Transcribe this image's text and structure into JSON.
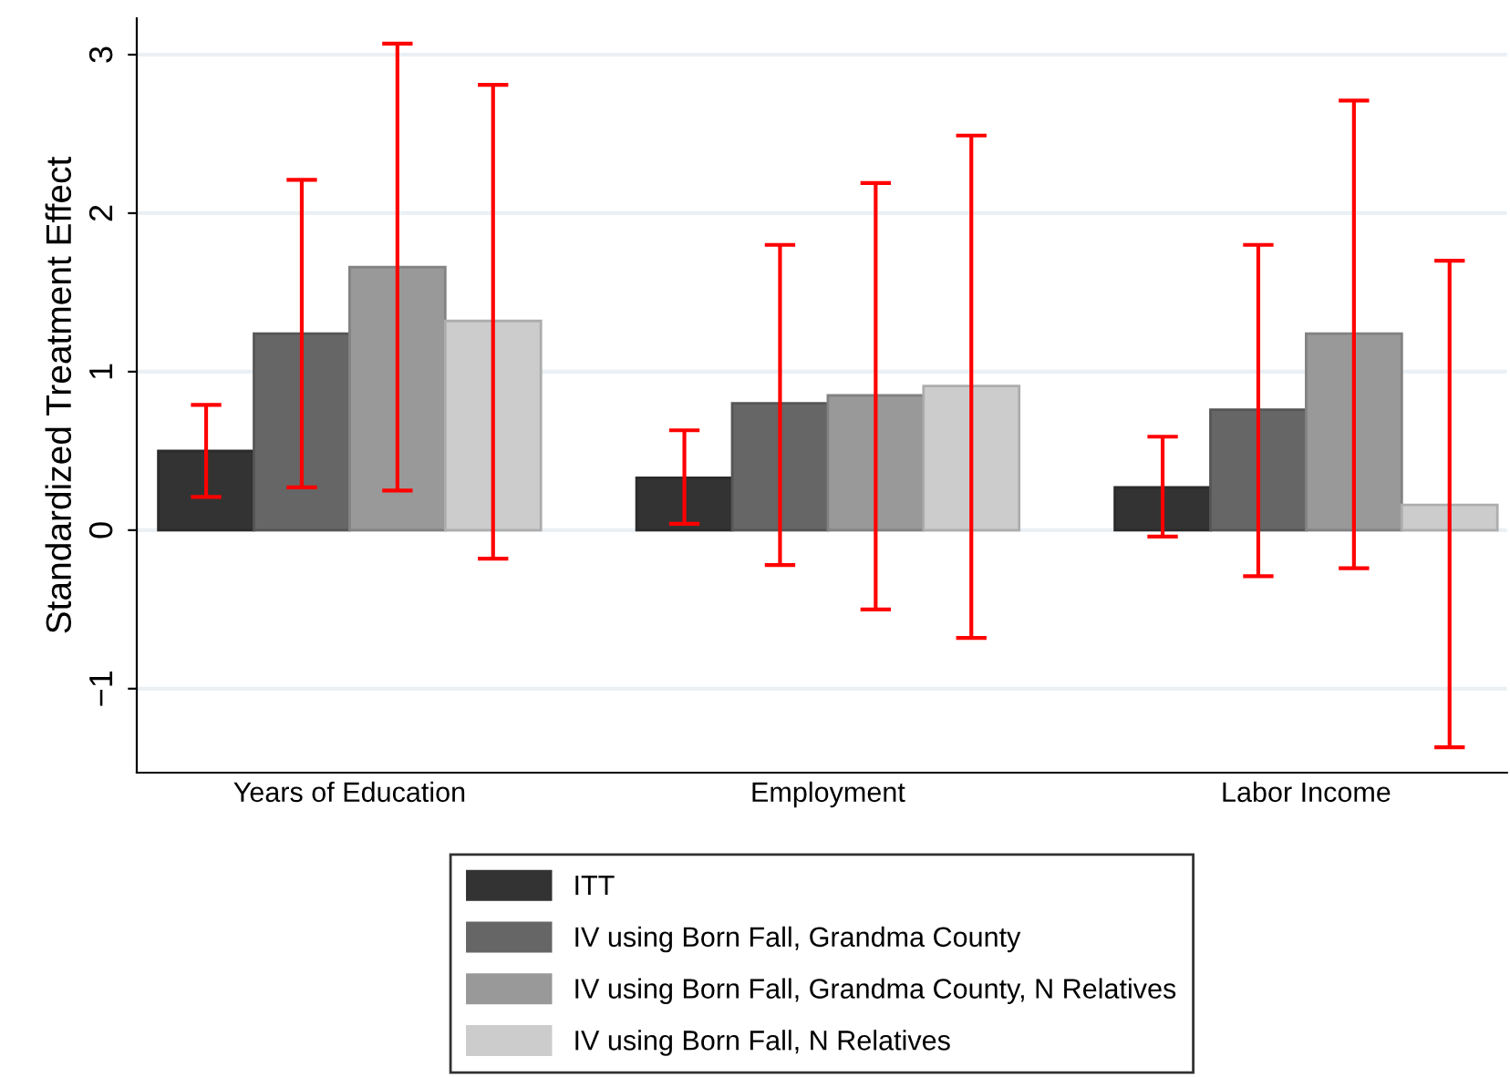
{
  "chart_data": {
    "type": "bar",
    "ylabel": "Standardized Treatment Effect",
    "categories": [
      "Years of Education",
      "Employment",
      "Labor Income"
    ],
    "series": [
      {
        "name": "ITT",
        "color": "#333333",
        "values": [
          0.5,
          0.33,
          0.27
        ],
        "errors": [
          [
            0.21,
            0.79
          ],
          [
            0.04,
            0.63
          ],
          [
            -0.04,
            0.59
          ]
        ]
      },
      {
        "name": "IV using Born Fall, Grandma County",
        "color": "#666666",
        "values": [
          1.24,
          0.8,
          0.76
        ],
        "errors": [
          [
            0.27,
            2.21
          ],
          [
            -0.22,
            1.8
          ],
          [
            -0.29,
            1.8
          ]
        ]
      },
      {
        "name": "IV using Born Fall, Grandma County, N Relatives",
        "color": "#999999",
        "values": [
          1.66,
          0.85,
          1.24
        ],
        "errors": [
          [
            0.25,
            3.07
          ],
          [
            -0.5,
            2.19
          ],
          [
            -0.24,
            2.71
          ]
        ]
      },
      {
        "name": "IV using Born Fall, N Relatives",
        "color": "#cccccc",
        "values": [
          1.32,
          0.91,
          0.16
        ],
        "errors": [
          [
            -0.18,
            2.81
          ],
          [
            -0.68,
            2.49
          ],
          [
            -1.37,
            1.7
          ]
        ]
      }
    ],
    "ylim": [
      -1.53,
      3.23
    ],
    "yticks": [
      {
        "value": -1,
        "label": "−1"
      },
      0,
      1,
      2,
      3
    ],
    "grid": "y",
    "legend": "bottom"
  }
}
